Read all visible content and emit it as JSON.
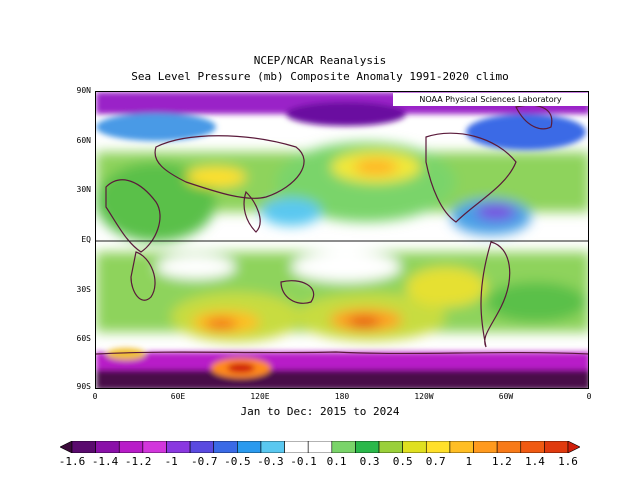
{
  "header": {
    "title_line1": "NCEP/NCAR Reanalysis",
    "title_line2": "Sea Level Pressure (mb) Composite Anomaly 1991-2020 climo"
  },
  "map": {
    "credit": "NOAA Physical Sciences Laboratory",
    "lat_labels": [
      "90N",
      "60N",
      "30N",
      "EQ",
      "30S",
      "60S",
      "90S"
    ],
    "lon_labels": [
      "0",
      "60E",
      "120E",
      "180",
      "120W",
      "60W",
      "0"
    ],
    "date_range": "Jan to Dec: 2015 to 2024",
    "colors": {
      "equator_line": "#1a1a1a",
      "coastline": "#5a1a3a"
    }
  },
  "colorbar": {
    "labels": [
      "-1.6",
      "-1.4",
      "-1.2",
      "-1",
      "-0.7",
      "-0.5",
      "-0.3",
      "-0.1",
      "0.1",
      "0.3",
      "0.5",
      "0.7",
      "1",
      "1.2",
      "1.4",
      "1.6"
    ],
    "colors": [
      "#3a0a3a",
      "#5a0a6e",
      "#8a10a8",
      "#b81cc8",
      "#d236dc",
      "#8a38e0",
      "#5a4ae0",
      "#3a6ae6",
      "#2a9aee",
      "#5ac8f0",
      "#ffffff",
      "#ffffff",
      "#7ad46a",
      "#2ab84a",
      "#9ad03a",
      "#e0e020",
      "#ffe02a",
      "#ffbe24",
      "#ff9a1e",
      "#f87a18",
      "#f05a12",
      "#e03a0e",
      "#d01e0a"
    ]
  }
}
